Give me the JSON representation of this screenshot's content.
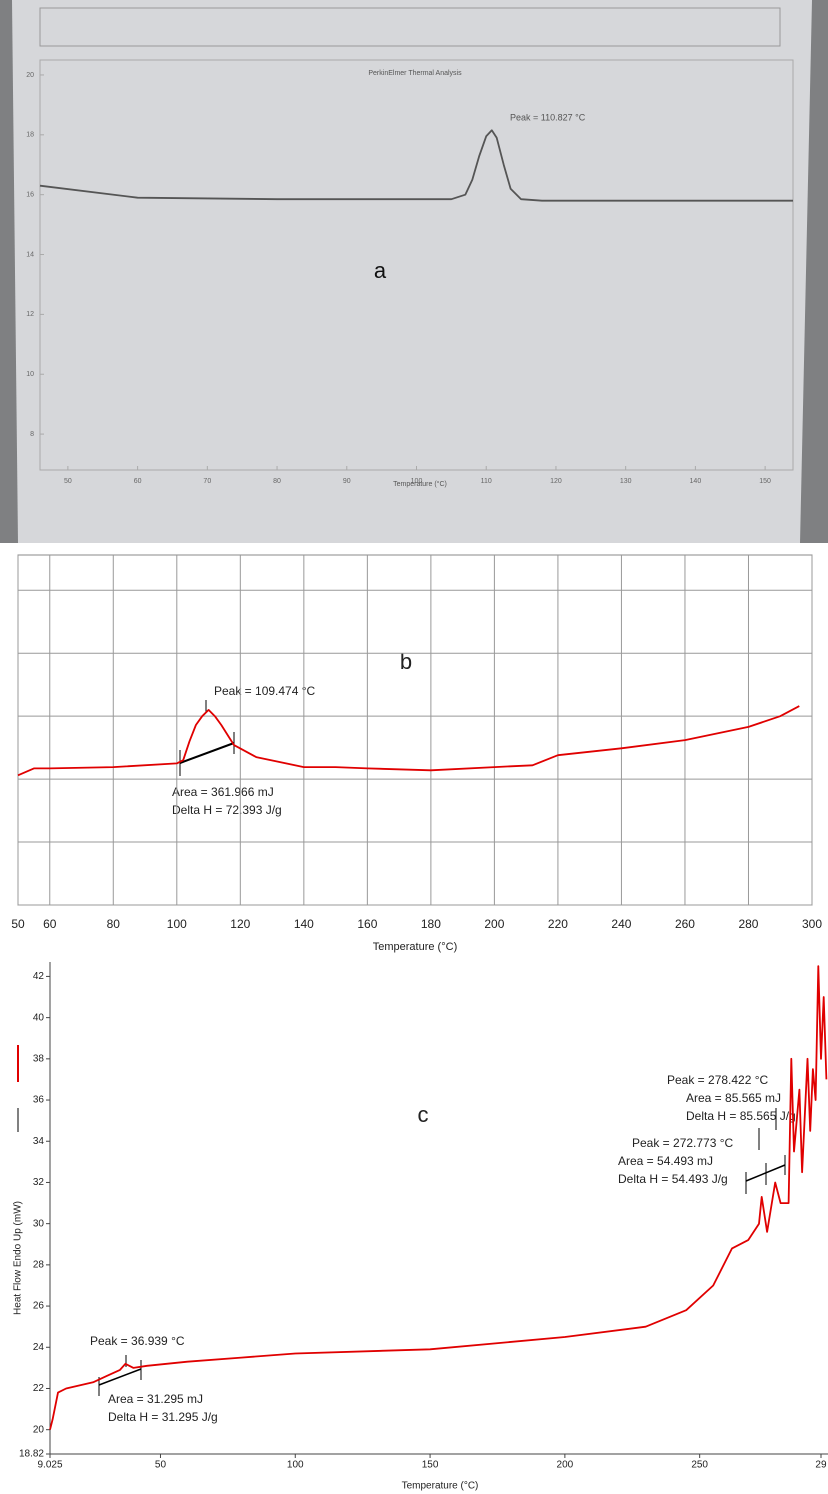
{
  "chart_data": [
    {
      "type": "line",
      "title": "PerkinElmer Thermal Analysis",
      "panel": "a",
      "xlabel": "Temperature (°C)",
      "x": [
        46,
        60,
        80,
        100,
        105,
        107,
        108,
        109,
        110,
        110.8,
        111.5,
        112.5,
        113.5,
        115,
        118,
        130,
        154
      ],
      "values": [
        16.3,
        15.9,
        15.85,
        15.85,
        15.85,
        16.0,
        16.5,
        17.3,
        17.95,
        18.15,
        17.9,
        17.0,
        16.2,
        15.85,
        15.8,
        15.8,
        15.8
      ],
      "color": "#555555",
      "grid": false,
      "xlim": [
        46,
        154
      ],
      "xticks": [
        50,
        60,
        70,
        80,
        90,
        100,
        110,
        120,
        130,
        140,
        150
      ],
      "ylim": [
        6.8,
        20.5
      ],
      "yticks": [
        8,
        10,
        12,
        14,
        16,
        18,
        20
      ],
      "annotations": [
        "Peak = 110.827 °C"
      ]
    },
    {
      "type": "line",
      "panel": "b",
      "xlabel": "Temperature (°C)",
      "x": [
        50,
        55,
        60,
        80,
        100,
        102,
        104,
        106,
        108,
        110,
        112,
        114,
        118,
        125,
        140,
        150,
        160,
        180,
        200,
        212,
        220,
        240,
        260,
        280,
        290,
        296
      ],
      "values": [
        2.06,
        2.17,
        2.17,
        2.19,
        2.25,
        2.3,
        2.6,
        2.86,
        3.0,
        3.1,
        3.0,
        2.86,
        2.54,
        2.35,
        2.19,
        2.19,
        2.17,
        2.14,
        2.19,
        2.22,
        2.38,
        2.49,
        2.62,
        2.83,
        3.0,
        3.16
      ],
      "color": "#e00000",
      "grid": true,
      "ytick_labels": false,
      "xlim": [
        50,
        300
      ],
      "xticks": [
        50,
        60,
        80,
        100,
        120,
        140,
        160,
        180,
        200,
        220,
        240,
        260,
        280,
        300
      ],
      "ylim": [
        0,
        5.56
      ],
      "yticks": [
        0,
        1,
        2,
        3,
        4,
        5
      ],
      "annotations": [
        "Peak = 109.474 °C",
        "Area = 361.966 mJ",
        "Delta H = 72.393 J/g"
      ]
    },
    {
      "type": "line",
      "panel": "c",
      "xlabel": "Temperature (°C)",
      "ylabel": "Heat Flow Endo Up (mW)",
      "x": [
        9.025,
        10,
        12,
        15,
        25,
        30,
        35,
        37,
        40,
        45,
        60,
        80,
        100,
        150,
        200,
        230,
        245,
        255,
        262,
        268,
        272,
        273,
        275,
        278,
        280,
        283,
        284,
        285,
        287,
        288,
        290,
        291,
        292,
        293,
        294,
        295,
        296,
        297
      ],
      "values": [
        20.0,
        20.5,
        21.8,
        22.0,
        22.3,
        22.6,
        22.9,
        23.2,
        23.0,
        23.1,
        23.3,
        23.5,
        23.7,
        23.9,
        24.5,
        25.0,
        25.8,
        27.0,
        28.8,
        29.2,
        30.0,
        31.3,
        29.6,
        32.0,
        31.0,
        31.0,
        38.0,
        33.5,
        36.5,
        32.5,
        38.0,
        34.5,
        37.5,
        36.0,
        42.5,
        38.0,
        41.0,
        37.0
      ],
      "color": "#e00000",
      "grid": false,
      "xlim": [
        9.025,
        297.6
      ],
      "xticks": [
        9.025,
        50,
        100,
        150,
        200,
        250,
        {
          "value": 295,
          "label": "29"
        }
      ],
      "ylim": [
        18.82,
        42.7
      ],
      "yticks": [
        18.82,
        20,
        22,
        24,
        26,
        28,
        30,
        32,
        34,
        36,
        38,
        40,
        42
      ],
      "annotations": [
        "Peak = 36.939 °C",
        "Area = 31.295 mJ",
        "Delta H = 31.295 J/g",
        "Peak = 272.773 °C",
        "Area = 54.493 mJ",
        "Delta H = 54.493 J/g",
        "Peak = 278.422 °C",
        "Area = 85.565 mJ",
        "Delta H = 85.565 J/g"
      ]
    }
  ]
}
